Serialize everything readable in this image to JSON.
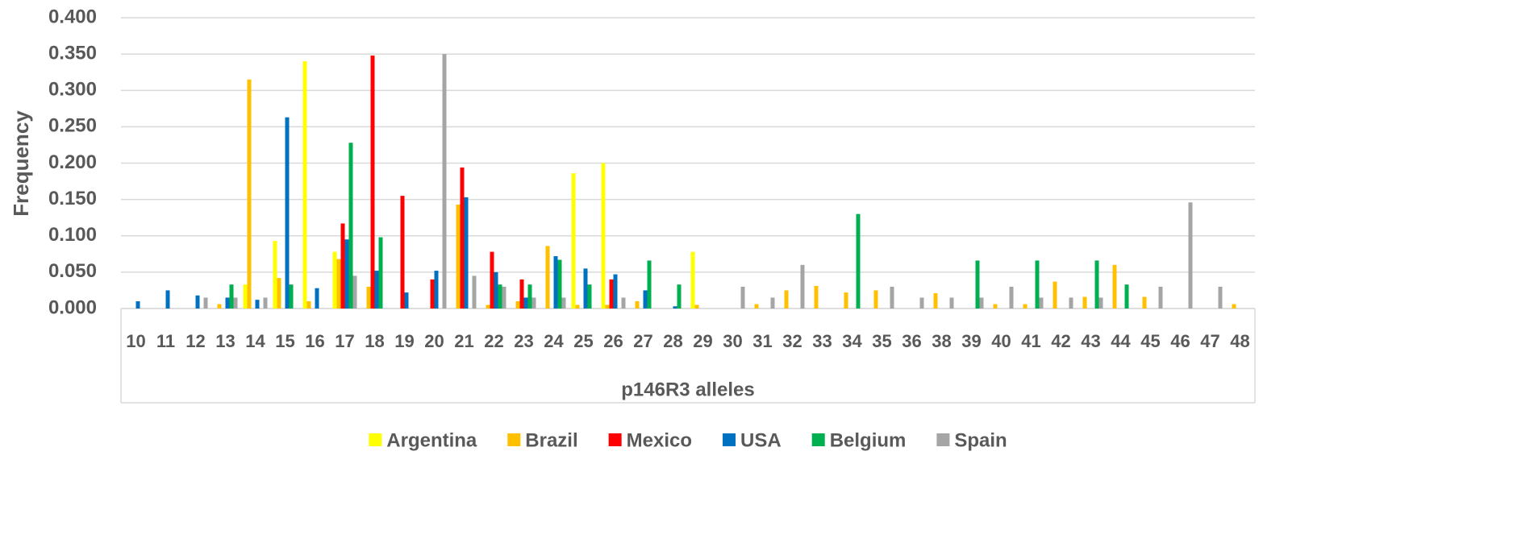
{
  "chart_data": {
    "type": "bar",
    "x_label": "p146R3 alleles",
    "y_label": "Frequency",
    "categories": [
      "10",
      "11",
      "12",
      "13",
      "14",
      "15",
      "16",
      "17",
      "18",
      "19",
      "20",
      "21",
      "22",
      "23",
      "24",
      "25",
      "26",
      "27",
      "28",
      "29",
      "30",
      "31",
      "32",
      "33",
      "34",
      "35",
      "36",
      "38",
      "39",
      "40",
      "41",
      "42",
      "43",
      "44",
      "45",
      "46",
      "47",
      "48"
    ],
    "series": [
      {
        "name": "Argentina",
        "color": "#ffff00",
        "values": [
          0,
          0,
          0,
          0,
          0.033,
          0.093,
          0.34,
          0.078,
          0,
          0,
          0,
          0,
          0,
          0,
          0,
          0.186,
          0.2,
          0,
          0,
          0.078,
          0,
          0,
          0,
          0,
          0,
          0,
          0,
          0,
          0,
          0,
          0,
          0,
          0,
          0,
          0,
          0,
          0,
          0
        ]
      },
      {
        "name": "Brazil",
        "color": "#ffc000",
        "values": [
          0,
          0,
          0,
          0.006,
          0.315,
          0.042,
          0.01,
          0.068,
          0.03,
          0,
          0,
          0.143,
          0.005,
          0.01,
          0.086,
          0.005,
          0.005,
          0.01,
          0,
          0.005,
          0,
          0.006,
          0.025,
          0.031,
          0.022,
          0.025,
          0,
          0.021,
          0,
          0.006,
          0.006,
          0.037,
          0.016,
          0.06,
          0.016,
          0,
          0,
          0.006
        ]
      },
      {
        "name": "Mexico",
        "color": "#ff0000",
        "values": [
          0,
          0,
          0,
          0,
          0,
          0,
          0,
          0.117,
          0.348,
          0.155,
          0.04,
          0.194,
          0.078,
          0.04,
          0,
          0,
          0.04,
          0,
          0,
          0,
          0,
          0,
          0,
          0,
          0,
          0,
          0,
          0,
          0,
          0,
          0,
          0,
          0,
          0,
          0,
          0,
          0,
          0
        ]
      },
      {
        "name": "USA",
        "color": "#0070c0",
        "values": [
          0.01,
          0.025,
          0.018,
          0.015,
          0.012,
          0.263,
          0.028,
          0.095,
          0.052,
          0.022,
          0.052,
          0.153,
          0.05,
          0.015,
          0.072,
          0.055,
          0.047,
          0.025,
          0.003,
          0,
          0,
          0,
          0,
          0,
          0,
          0,
          0,
          0,
          0,
          0,
          0,
          0,
          0,
          0,
          0,
          0,
          0,
          0
        ]
      },
      {
        "name": "Belgium",
        "color": "#00b050",
        "values": [
          0,
          0,
          0,
          0.033,
          0,
          0.033,
          0,
          0.228,
          0.098,
          0,
          0,
          0,
          0.033,
          0.033,
          0.067,
          0.033,
          0,
          0.066,
          0.033,
          0,
          0,
          0,
          0,
          0,
          0.13,
          0,
          0,
          0,
          0.066,
          0,
          0.066,
          0,
          0.066,
          0.033,
          0,
          0,
          0,
          0
        ]
      },
      {
        "name": "Spain",
        "color": "#a5a5a5",
        "values": [
          0,
          0,
          0.015,
          0.015,
          0.015,
          0,
          0,
          0.045,
          0,
          0,
          0.35,
          0.045,
          0.03,
          0.015,
          0.015,
          0,
          0.015,
          0,
          0,
          0,
          0.03,
          0.015,
          0.06,
          0,
          0,
          0.03,
          0.015,
          0.015,
          0.015,
          0.03,
          0.015,
          0.015,
          0.015,
          0,
          0.03,
          0.146,
          0.03,
          0
        ]
      }
    ],
    "ylim": [
      0,
      0.4
    ],
    "yticks": [
      {
        "value": 0,
        "label": "0.000"
      },
      {
        "value": 0.05,
        "label": "0.050"
      },
      {
        "value": 0.1,
        "label": "0.100"
      },
      {
        "value": 0.15,
        "label": "0.150"
      },
      {
        "value": 0.2,
        "label": "0.200"
      },
      {
        "value": 0.25,
        "label": "0.250"
      },
      {
        "value": 0.3,
        "label": "0.300"
      },
      {
        "value": 0.35,
        "label": "0.350"
      },
      {
        "value": 0.4,
        "label": "0.400"
      }
    ],
    "grid": true,
    "legend": "bottom"
  }
}
